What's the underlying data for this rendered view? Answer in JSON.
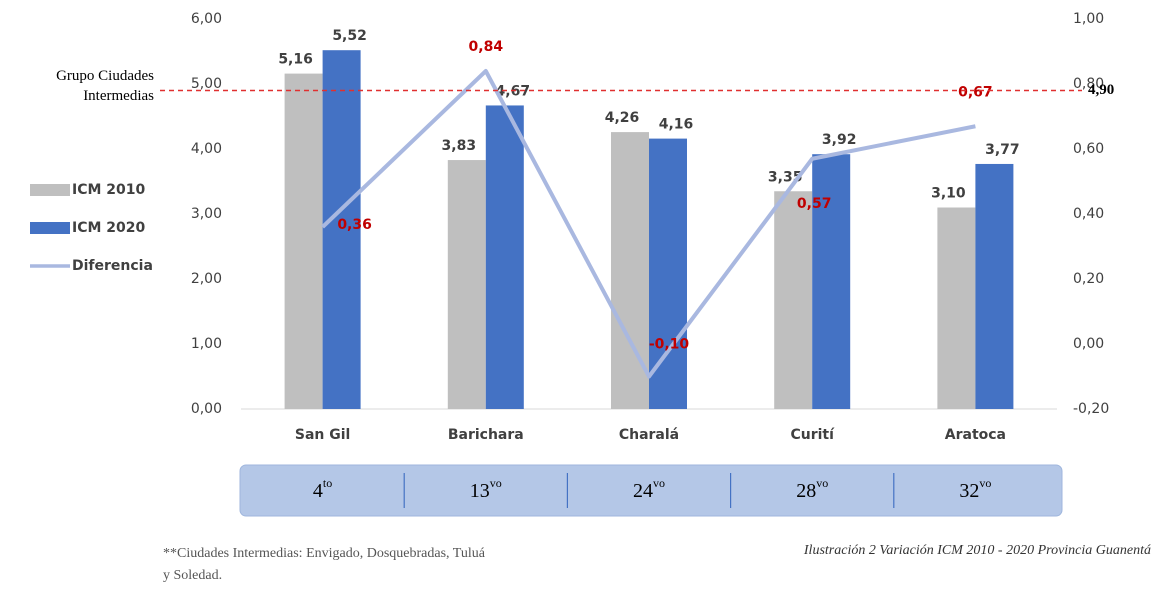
{
  "chart_data": {
    "type": "bar",
    "categories": [
      "San Gil",
      "Barichara",
      "Charalá",
      "Curití",
      "Aratoca"
    ],
    "series": [
      {
        "name": "ICM 2010",
        "type": "bar",
        "color": "#bfbfbf",
        "values": [
          5.16,
          3.83,
          4.26,
          3.35,
          3.1
        ],
        "value_labels": [
          "5,16",
          "3,83",
          "4,26",
          "3,35",
          "3,10"
        ]
      },
      {
        "name": "ICM 2020",
        "type": "bar",
        "color": "#4472c4",
        "values": [
          5.52,
          4.67,
          4.16,
          3.92,
          3.77
        ],
        "value_labels": [
          "5,52",
          "4,67",
          "4,16",
          "3,92",
          "3,77"
        ]
      },
      {
        "name": "Diferencia",
        "type": "line",
        "axis": "y2",
        "color": "#a9b8e0",
        "values": [
          0.36,
          0.84,
          -0.1,
          0.57,
          0.67
        ],
        "value_labels": [
          "0,36",
          "0,84",
          "-0,10",
          "0,57",
          "0,67"
        ],
        "label_color": "#c00000"
      }
    ],
    "ylim": [
      0,
      6
    ],
    "yticks": [
      {
        "value": 0,
        "label": "0,00"
      },
      {
        "value": 1,
        "label": "1,00"
      },
      {
        "value": 2,
        "label": "2,00"
      },
      {
        "value": 3,
        "label": "3,00"
      },
      {
        "value": 4,
        "label": "4,00"
      },
      {
        "value": 5,
        "label": "5,00"
      },
      {
        "value": 6,
        "label": "6,00"
      }
    ],
    "y2lim": [
      -0.2,
      1
    ],
    "y2ticks": [
      {
        "value": -0.2,
        "label": "-0,20"
      },
      {
        "value": 0,
        "label": "0,00"
      },
      {
        "value": 0.2,
        "label": "0,20"
      },
      {
        "value": 0.4,
        "label": "0,40"
      },
      {
        "value": 0.6,
        "label": "0,60"
      },
      {
        "value": 0.8,
        "label": "0,80"
      },
      {
        "value": 1,
        "label": "1,00"
      }
    ],
    "grid": false,
    "legend": "left",
    "reference_line": {
      "label": "Grupo Ciudades Intermedias",
      "value": 4.9,
      "value_label": "4,90",
      "color": "#e03030"
    },
    "ranks": [
      {
        "number": "4",
        "suffix": "to"
      },
      {
        "number": "13",
        "suffix": "vo"
      },
      {
        "number": "24",
        "suffix": "vo"
      },
      {
        "number": "28",
        "suffix": "vo"
      },
      {
        "number": "32",
        "suffix": "vo"
      }
    ],
    "footnote": "**Ciudades Intermedias: Envigado, Dosquebradas, Tuluá y Soledad.",
    "caption": "Ilustración 2 Variación ICM 2010 - 2020 Provincia Guanentá"
  }
}
